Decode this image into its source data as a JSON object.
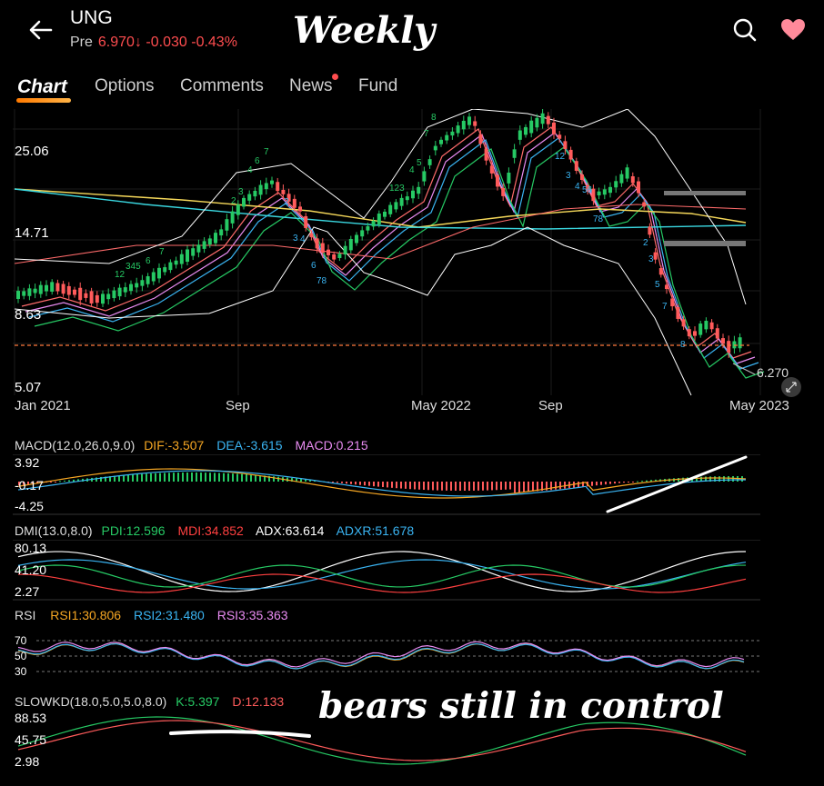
{
  "header": {
    "ticker": "UNG",
    "pre_label": "Pre",
    "price": "6.970",
    "arrow": "↓",
    "change": "-0.030",
    "change_pct": "-0.43%",
    "annotation_title": "Weekly",
    "icons": [
      "back-arrow-icon",
      "search-icon",
      "heart-icon"
    ],
    "colors": {
      "negative": "#ff4d4f",
      "heart": "#ff8a9a"
    }
  },
  "tabs": [
    {
      "label": "Chart",
      "active": true
    },
    {
      "label": "Options",
      "active": false
    },
    {
      "label": "Comments",
      "active": false
    },
    {
      "label": "News",
      "active": false,
      "badge": true
    },
    {
      "label": "Fund",
      "active": false
    }
  ],
  "main_chart": {
    "y_labels": [
      "25.06",
      "14.71",
      "8.63",
      "5.07"
    ],
    "x_labels": [
      "Jan 2021",
      "Sep",
      "May 2022",
      "Sep",
      "May 2023"
    ],
    "last_price_label": "6.270",
    "colors": {
      "up": "#26c964",
      "down": "#ff5b5b"
    }
  },
  "macd": {
    "title": "MACD(12.0,26.0,9.0)",
    "dif": "DIF:-3.507",
    "dea": "DEA:-3.615",
    "macd": "MACD:0.215",
    "y_labels": [
      "3.92",
      "-0.17",
      "-4.25"
    ],
    "colors": {
      "dif": "#f5a623",
      "dea": "#3ab4f2",
      "macd": "#e98cf2"
    }
  },
  "dmi": {
    "title": "DMI(13.0,8.0)",
    "pdi": "PDI:12.596",
    "mdi": "MDI:34.852",
    "adx": "ADX:63.614",
    "adxr": "ADXR:51.678",
    "y_labels": [
      "80.13",
      "41.20",
      "2.27"
    ],
    "colors": {
      "pdi": "#26c964",
      "mdi": "#ff4040",
      "adx": "#ffffff",
      "adxr": "#3ab4f2"
    }
  },
  "rsi": {
    "title": "RSI",
    "rsi1": "RSI1:30.806",
    "rsi2": "RSI2:31.480",
    "rsi3": "RSI3:35.363",
    "y_labels": [
      "70",
      "50",
      "30"
    ],
    "colors": {
      "rsi1": "#f5a623",
      "rsi2": "#3ab4f2",
      "rsi3": "#e98cf2"
    }
  },
  "slowkd": {
    "title": "SLOWKD(18.0,5.0,5.0,8.0)",
    "k": "K:5.397",
    "d": "D:12.133",
    "y_labels": [
      "88.53",
      "45.75",
      "2.98"
    ],
    "annotation": "bears still in control",
    "colors": {
      "k": "#26c964",
      "d": "#ff5b5b"
    }
  }
}
